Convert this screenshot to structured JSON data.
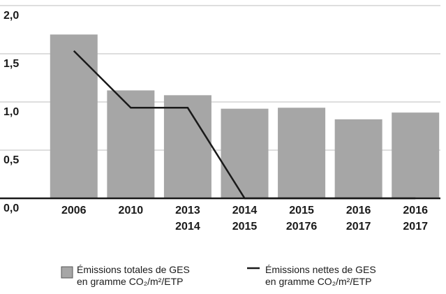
{
  "chart_data": {
    "type": "bar_line",
    "categories": [
      [
        "2006"
      ],
      [
        "2010"
      ],
      [
        "2013",
        "2014"
      ],
      [
        "2014",
        "2015"
      ],
      [
        "2015",
        "20176"
      ],
      [
        "2016",
        "2017"
      ],
      [
        "2016",
        "2017"
      ]
    ],
    "series": [
      {
        "name": [
          "Émissions totales de GES",
          "en gramme CO₂/m²/ETP"
        ],
        "type": "bar",
        "color": "#a6a6a6",
        "values": [
          1.7,
          1.12,
          1.07,
          0.93,
          0.94,
          0.82,
          0.89
        ]
      },
      {
        "name": [
          "Émissions nettes de GES",
          "en gramme CO₂/m²/ETP"
        ],
        "type": "line",
        "color": "#1a1a1a",
        "values": [
          1.53,
          0.94,
          0.94,
          0,
          0,
          0,
          0
        ]
      }
    ],
    "ylim": [
      0,
      2
    ],
    "yticks": [
      {
        "value": 0,
        "label": "0,0"
      },
      {
        "value": 0.5,
        "label": "0,5"
      },
      {
        "value": 1,
        "label": "1,0"
      },
      {
        "value": 1.5,
        "label": "1,5"
      },
      {
        "value": 2,
        "label": "2,0"
      }
    ],
    "grid": true
  }
}
